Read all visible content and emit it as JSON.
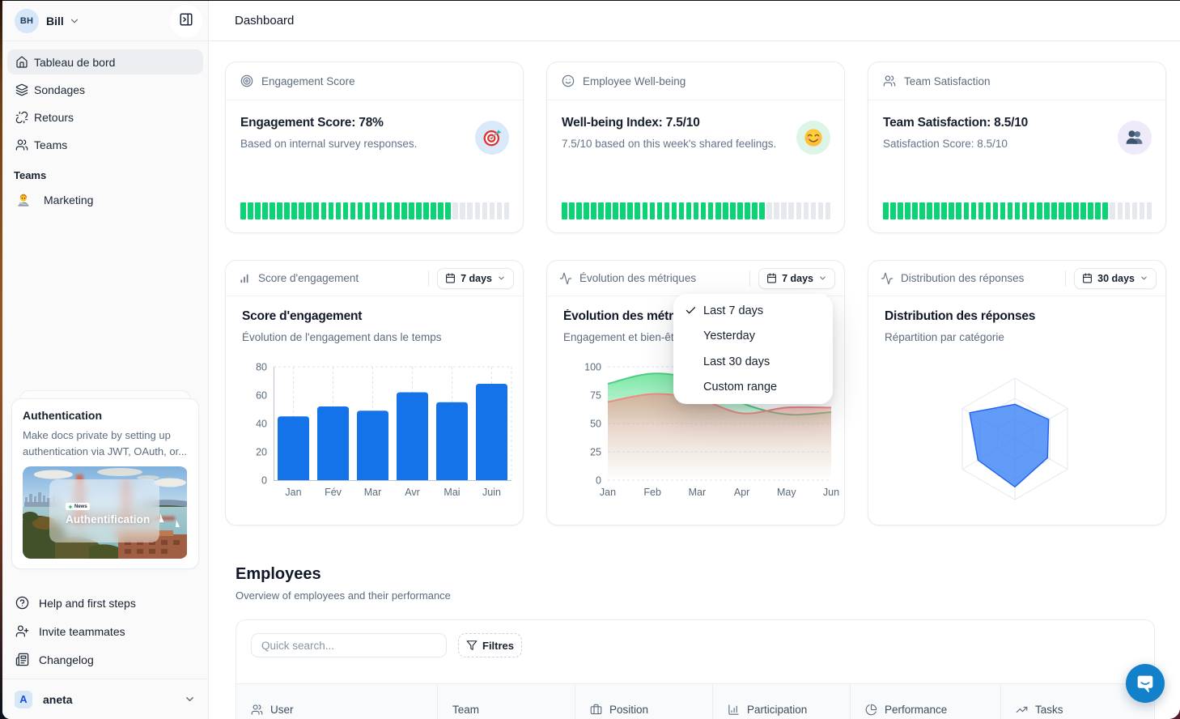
{
  "sidebar": {
    "workspace": {
      "initials": "BH",
      "name": "Bill"
    },
    "nav": [
      {
        "icon": "house-icon",
        "label": "Tableau de bord",
        "active": true
      },
      {
        "icon": "layers-icon",
        "label": "Sondages",
        "active": false
      },
      {
        "icon": "unlink-icon",
        "label": "Retours",
        "active": false
      },
      {
        "icon": "users-icon",
        "label": "Teams",
        "active": false
      }
    ],
    "section_label": "Teams",
    "teams": [
      {
        "icon": "technologist-emoji-icon",
        "label": "Marketing"
      }
    ],
    "promo": {
      "title": "Authentication",
      "description": "Make docs private by setting up authentication via JWT, OAuth, or...",
      "badge": "News",
      "image_title": "Authentification"
    },
    "menu": [
      {
        "icon": "circle-help-icon",
        "label": "Help and first steps"
      },
      {
        "icon": "user-plus-icon",
        "label": "Invite teammates"
      },
      {
        "icon": "newspaper-icon",
        "label": "Changelog"
      }
    ],
    "account": {
      "initial": "A",
      "name": "aneta"
    }
  },
  "topbar": {
    "title": "Dashboard"
  },
  "stat_cards": [
    {
      "icon": "target-icon",
      "title": "Engagement Score",
      "headline": "Engagement Score: 78%",
      "subtext": "Based on internal survey responses.",
      "emoji": "dart-emoji-icon",
      "emoji_bg": "#d9e9f9",
      "progress_percent": 78
    },
    {
      "icon": "smile-icon",
      "title": "Employee Well-being",
      "headline": "Well-being Index: 7.5/10",
      "subtext": "7.5/10 based on this week's shared feelings.",
      "emoji": "smiling-face-emoji-icon",
      "emoji_bg": "#dcf5e6",
      "progress_percent": 75
    },
    {
      "icon": "users-icon",
      "title": "Team Satisfaction",
      "headline": "Team Satisfaction: 8.5/10",
      "subtext": "Satisfaction Score: 8.5/10",
      "emoji": "busts-emoji-icon",
      "emoji_bg": "#efeaf9",
      "progress_percent": 85
    }
  ],
  "progress_style": {
    "segments": 37,
    "on_color": "#0bd376",
    "off_color": "#e5e8ec"
  },
  "chart_cards": [
    {
      "icon": "chart-column-increasing-icon",
      "header_title": "Score d'engagement",
      "range_label": "7 days",
      "title": "Score d'engagement",
      "subtitle": "Évolution de l'engagement dans le temps"
    },
    {
      "icon": "activity-icon",
      "header_title": "Évolution des métriques",
      "range_label": "7 days",
      "title": "Évolution des métriques",
      "subtitle": "Engagement et bien-être"
    },
    {
      "icon": "activity-icon",
      "header_title": "Distribution des réponses",
      "range_label": "30 days",
      "title": "Distribution des réponses",
      "subtitle": "Répartition par catégorie"
    }
  ],
  "range_menu": {
    "items": [
      {
        "label": "Last 7 days",
        "checked": true
      },
      {
        "label": "Yesterday",
        "checked": false
      },
      {
        "label": "Last 30 days",
        "checked": false
      },
      {
        "label": "Custom range",
        "checked": false
      }
    ]
  },
  "chart_data": [
    {
      "type": "bar",
      "title": "Score d'engagement",
      "categories": [
        "Jan",
        "Fév",
        "Mar",
        "Avr",
        "Mai",
        "Juin"
      ],
      "values": [
        45,
        52,
        49,
        62,
        55,
        68
      ],
      "ylim": [
        0,
        80
      ],
      "yticks": [
        0,
        20,
        40,
        60,
        80
      ],
      "bar_color": "#1473e8",
      "grid": "dashed-vertical"
    },
    {
      "type": "area",
      "title": "Évolution des métriques",
      "x": [
        "Jan",
        "Feb",
        "Mar",
        "Apr",
        "May",
        "Jun"
      ],
      "ylim": [
        0,
        100
      ],
      "yticks": [
        0,
        25,
        50,
        75,
        100
      ],
      "grid": "dashed-horizontal",
      "series": [
        {
          "name": "engagement",
          "stroke": "#4fcd85",
          "fill": "#6fe59d",
          "values": [
            85,
            94,
            88,
            68,
            58,
            60
          ]
        },
        {
          "name": "bien-être",
          "stroke": "#ee8b84",
          "fill": "#f08c84",
          "values": [
            69,
            76,
            72,
            59,
            64,
            64
          ]
        }
      ]
    },
    {
      "type": "radar",
      "title": "Distribution des réponses",
      "max": 100,
      "values": [
        57,
        64,
        62,
        79,
        70,
        86
      ],
      "fill": "#3b82f6",
      "stroke": "#2563eb",
      "grid_color": "#e2e8f0"
    }
  ],
  "employees": {
    "heading": "Employees",
    "subheading": "Overview of employees and their performance",
    "search_placeholder": "Quick search...",
    "filter_label": "Filtres",
    "columns": [
      {
        "icon": "users-icon",
        "label": "User"
      },
      {
        "icon": "",
        "label": "Team"
      },
      {
        "icon": "briefcase-icon",
        "label": "Position"
      },
      {
        "icon": "chart-column-icon",
        "label": "Participation"
      },
      {
        "icon": "chart-pie-icon",
        "label": "Performance"
      },
      {
        "icon": "trending-up-icon",
        "label": "Tasks"
      }
    ]
  },
  "chat": {
    "color": "#1281c9"
  }
}
